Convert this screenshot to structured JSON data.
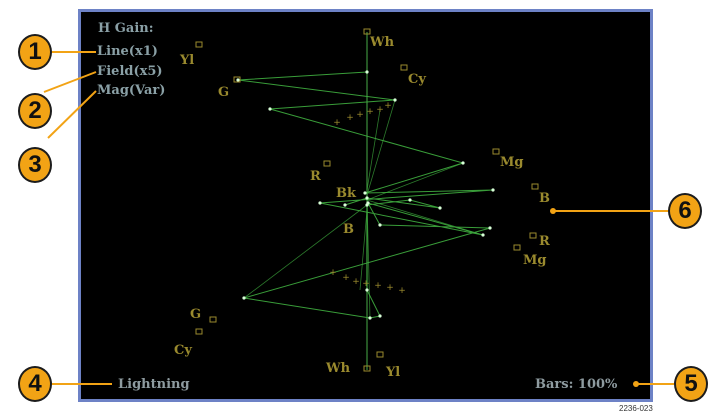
{
  "menu": {
    "title": "H Gain:",
    "options": [
      "Line(x1)",
      "Field(x5)",
      "Mag(Var)"
    ]
  },
  "status": {
    "display_mode": "Lightning",
    "bars": "Bars: 100%"
  },
  "targets": {
    "top": {
      "wh": "Wh",
      "yl": "Yl",
      "cy": "Cy",
      "g": "G",
      "mg": "Mg",
      "r": "R",
      "b": "B",
      "bk": "Bk"
    },
    "bottom": {
      "b": "B",
      "r": "R",
      "mg": "Mg",
      "g": "G",
      "cy": "Cy",
      "wh": "Wh",
      "yl": "Yl"
    }
  },
  "callouts": [
    "1",
    "2",
    "3",
    "4",
    "5",
    "6"
  ],
  "figure_id": "2236-023",
  "colors": {
    "screen_bg": "#000000",
    "screen_border": "#6d82c6",
    "trace": "#3fae3f",
    "target_text": "#9a8a2e",
    "callout_fill": "#f2a315",
    "leader_line": "#f2a315"
  }
}
